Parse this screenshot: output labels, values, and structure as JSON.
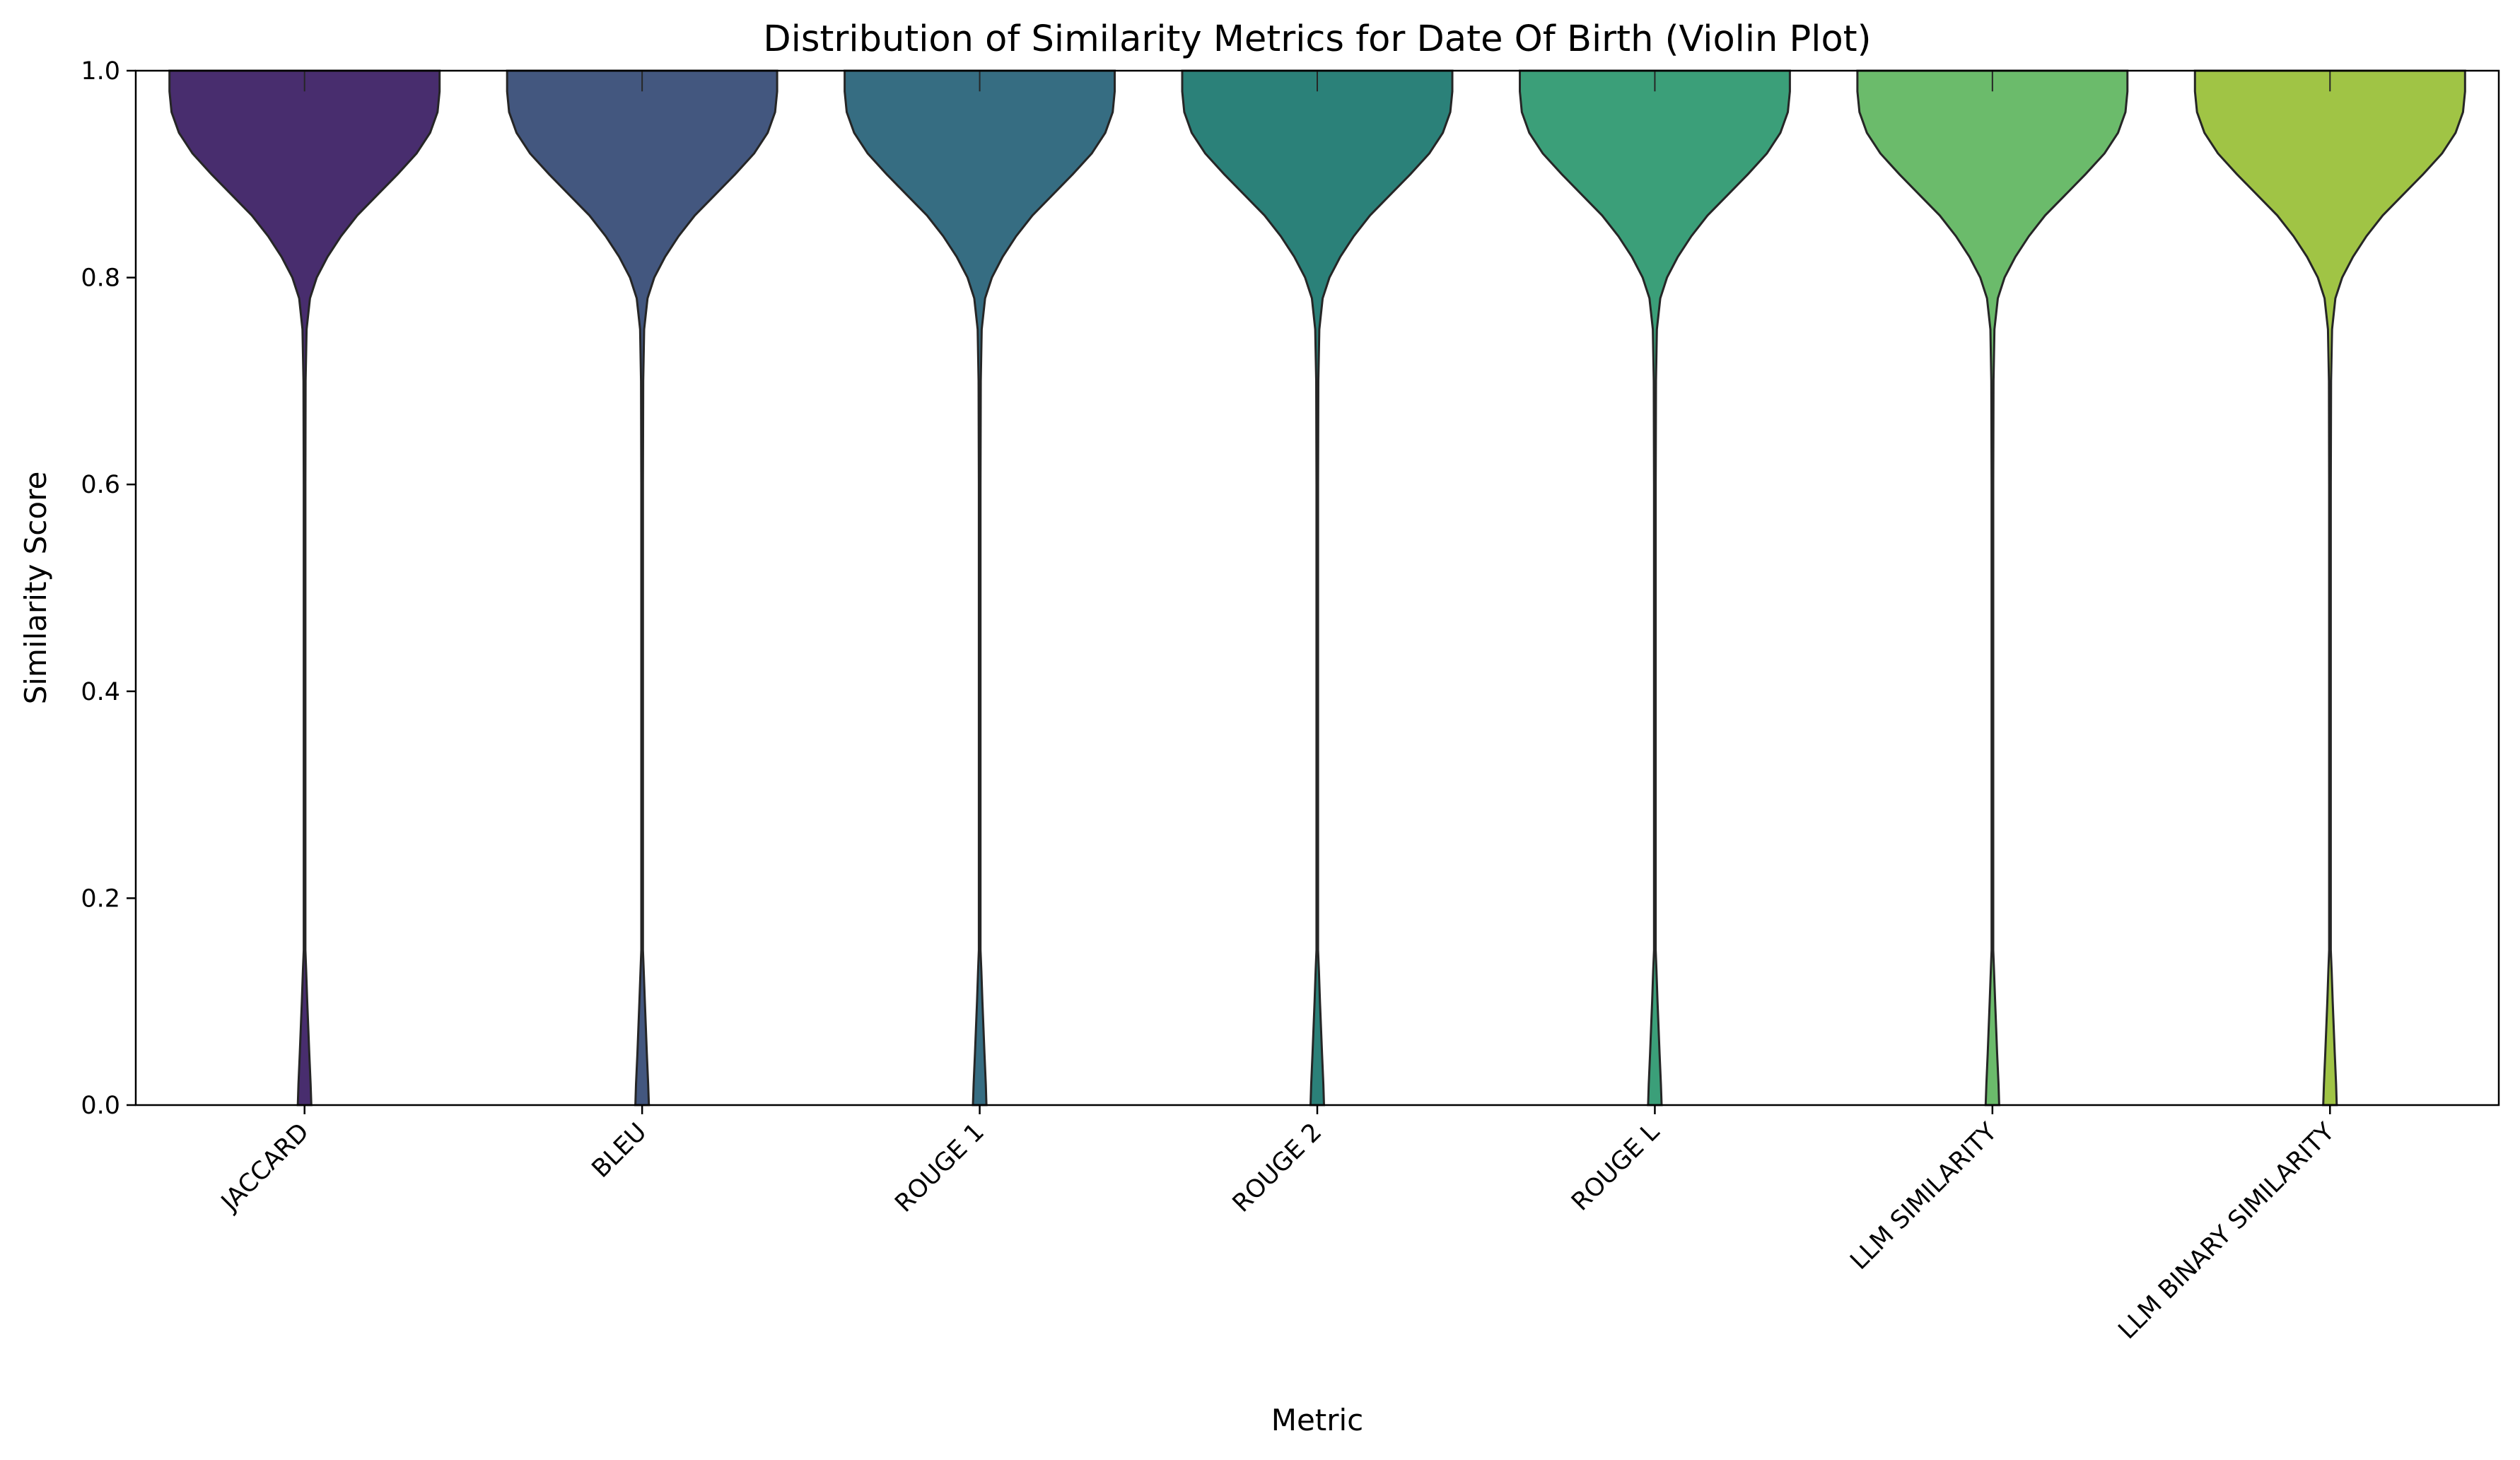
{
  "chart_data": {
    "type": "violin",
    "title": "Distribution of Similarity Metrics for Date Of Birth (Violin Plot)",
    "xlabel": "Metric",
    "ylabel": "Similarity Score",
    "ylim": [
      0.0,
      1.0
    ],
    "yticks": [
      "0.0",
      "0.2",
      "0.4",
      "0.6",
      "0.8",
      "1.0"
    ],
    "categories": [
      "JACCARD",
      "BLEU",
      "ROUGE 1",
      "ROUGE 2",
      "ROUGE L",
      "LLM SIMILARITY",
      "LLM BINARY SIMILARITY"
    ],
    "colors": [
      "#482d6e",
      "#43577f",
      "#366d82",
      "#2b8179",
      "#3b9f79",
      "#6bbb6b",
      "#a0c445"
    ],
    "density_profile": {
      "y": [
        0.0,
        0.02,
        0.05,
        0.1,
        0.13,
        0.15,
        0.2,
        0.3,
        0.4,
        0.5,
        0.6,
        0.7,
        0.75,
        0.78,
        0.8,
        0.82,
        0.84,
        0.86,
        0.88,
        0.9,
        0.92,
        0.94,
        0.96,
        0.98,
        1.0
      ],
      "relative_width": [
        0.05,
        0.045,
        0.035,
        0.02,
        0.012,
        0.006,
        0.006,
        0.006,
        0.006,
        0.006,
        0.006,
        0.008,
        0.015,
        0.04,
        0.09,
        0.17,
        0.27,
        0.39,
        0.54,
        0.69,
        0.83,
        0.93,
        0.985,
        1.0,
        1.0
      ]
    },
    "grid": false,
    "legend": "none"
  }
}
